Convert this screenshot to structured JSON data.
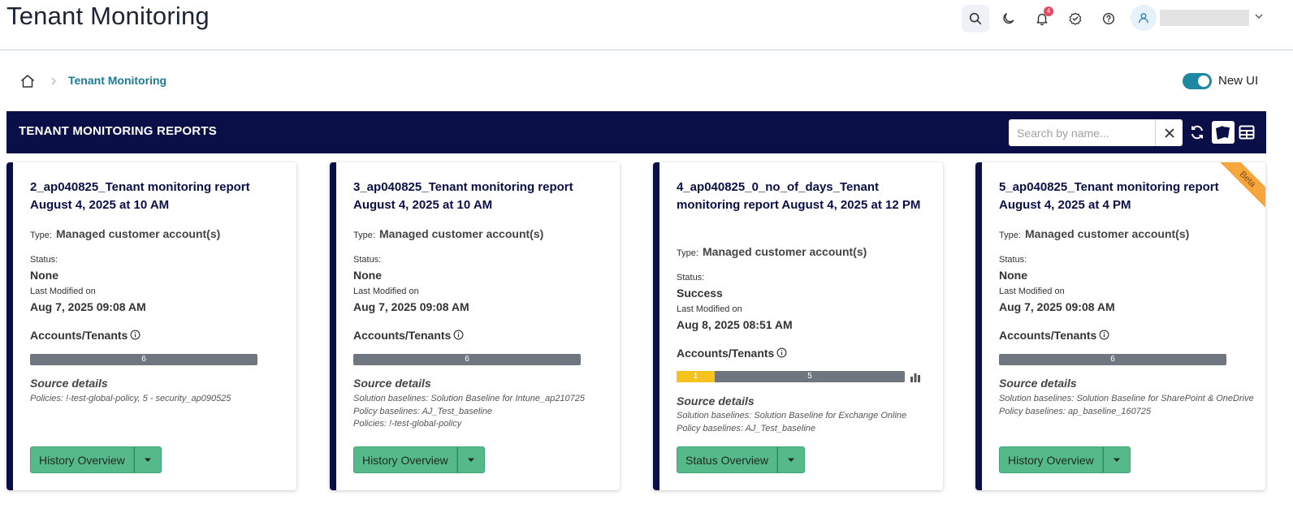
{
  "header": {
    "title": "Tenant Monitoring",
    "notification_count": "4",
    "user_name": ""
  },
  "breadcrumb": {
    "current": "Tenant Monitoring"
  },
  "toggle": {
    "label": "New UI",
    "on": true
  },
  "section": {
    "title": "TENANT MONITORING REPORTS",
    "search_placeholder": "Search by name..."
  },
  "labels": {
    "type": "Type:",
    "status": "Status:",
    "last_modified": "Last Modified on",
    "accounts": "Accounts/Tenants",
    "source": "Source details"
  },
  "cards": [
    {
      "title": "2_ap040825_Tenant monitoring report August 4, 2025 at 10 AM",
      "type": "Managed customer account(s)",
      "status": "None",
      "last_modified": "Aug 7, 2025 09:08 AM",
      "bar": [
        {
          "value": "6",
          "color": "gray"
        }
      ],
      "source_lines": [
        "Policies: !-test-global-policy, 5 - security_ap090525"
      ],
      "button": "History Overview"
    },
    {
      "title": "3_ap040825_Tenant monitoring report August 4, 2025 at 10 AM",
      "type": "Managed customer account(s)",
      "status": "None",
      "last_modified": "Aug 7, 2025 09:08 AM",
      "bar": [
        {
          "value": "6",
          "color": "gray"
        }
      ],
      "source_lines": [
        "Solution baselines: Solution Baseline for Intune_ap210725",
        "Policy baselines: AJ_Test_baseline",
        "Policies: !-test-global-policy"
      ],
      "button": "History Overview"
    },
    {
      "title": "4_ap040825_0_no_of_days_Tenant monitoring report August 4, 2025 at 12 PM",
      "type": "Managed customer account(s)",
      "status": "Success",
      "last_modified": "Aug 8, 2025 08:51 AM",
      "bar": [
        {
          "value": "1",
          "color": "yellow"
        },
        {
          "value": "5",
          "color": "gray"
        }
      ],
      "source_lines": [
        "Solution baselines: Solution Baseline for Exchange Online",
        "Policy baselines: AJ_Test_baseline"
      ],
      "button": "Status Overview"
    },
    {
      "title": "5_ap040825_Tenant monitoring report August 4, 2025 at 4 PM",
      "type": "Managed customer account(s)",
      "status": "None",
      "last_modified": "Aug 7, 2025 09:08 AM",
      "bar": [
        {
          "value": "6",
          "color": "gray"
        }
      ],
      "source_lines": [
        "Solution baselines: Solution Baseline for SharePoint & OneDrive",
        "Policy baselines: ap_baseline_160725"
      ],
      "button": "History Overview",
      "badge": "Beta"
    }
  ]
}
